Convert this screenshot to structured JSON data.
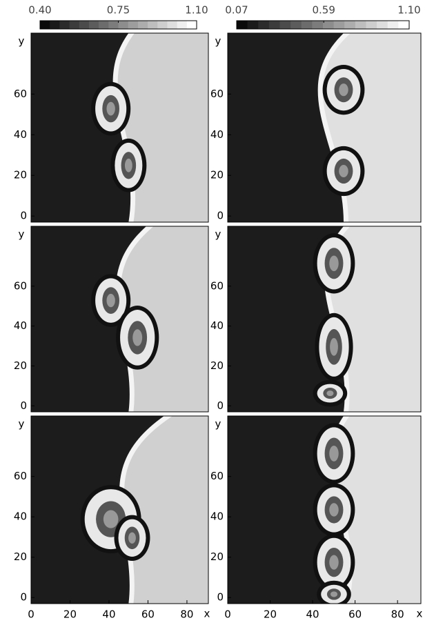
{
  "chart_data": [
    {
      "type": "image",
      "ylabel": "y",
      "xlim": [
        0,
        91
      ],
      "ylim": [
        -3,
        90
      ],
      "yticks": [
        0,
        20,
        40,
        60
      ],
      "colorbar": {
        "lim": [
          0.4,
          1.1
        ],
        "ticks": [
          {
            "value": 0.4,
            "label": "0.40"
          },
          {
            "value": 0.75,
            "label": "0.75"
          },
          {
            "value": 1.1,
            "label": "1.10"
          }
        ]
      }
    },
    {
      "type": "image",
      "ylabel": "y",
      "xlim": [
        0,
        91
      ],
      "ylim": [
        -3,
        90
      ],
      "yticks": [
        0,
        20,
        40,
        60
      ],
      "colorbar": {
        "lim": [
          0.07,
          1.1
        ],
        "ticks": [
          {
            "value": 0.07,
            "label": "0.07"
          },
          {
            "value": 0.59,
            "label": "0.59"
          },
          {
            "value": 1.1,
            "label": "1.10"
          }
        ]
      }
    },
    {
      "type": "image",
      "ylabel": "y",
      "xlim": [
        0,
        91
      ],
      "ylim": [
        -3,
        90
      ],
      "yticks": [
        0,
        20,
        40,
        60
      ]
    },
    {
      "type": "image",
      "ylabel": "y",
      "xlim": [
        0,
        91
      ],
      "ylim": [
        -3,
        90
      ],
      "yticks": [
        0,
        20,
        40,
        60
      ]
    },
    {
      "type": "image",
      "ylabel": "y",
      "xlabel": "x",
      "xlim": [
        0,
        91
      ],
      "ylim": [
        -3,
        90
      ],
      "yticks": [
        0,
        20,
        40,
        60
      ],
      "xticks": [
        0,
        20,
        40,
        60,
        80
      ]
    },
    {
      "type": "image",
      "ylabel": "y",
      "xlabel": "x",
      "xlim": [
        0,
        91
      ],
      "ylim": [
        -3,
        90
      ],
      "yticks": [
        0,
        20,
        40,
        60
      ],
      "xticks": [
        0,
        20,
        40,
        60,
        80
      ]
    }
  ]
}
